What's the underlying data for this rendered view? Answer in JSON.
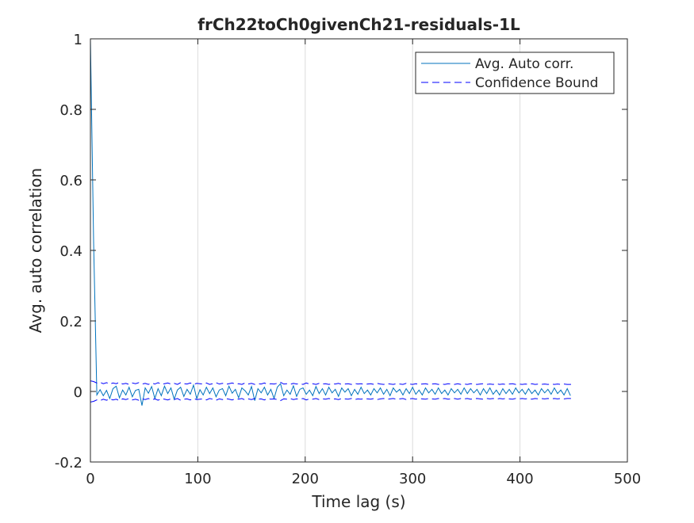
{
  "chart_data": {
    "type": "line",
    "title": "frCh22toCh0givenCh21-residuals-1L",
    "xlabel": "Time lag (s)",
    "ylabel": "Avg. auto correlation",
    "xlim": [
      0,
      500
    ],
    "ylim": [
      -0.2,
      1
    ],
    "xticks": [
      0,
      100,
      200,
      300,
      400,
      500
    ],
    "yticks": [
      -0.2,
      0,
      0.2,
      0.4,
      0.6,
      0.8,
      1
    ],
    "xtick_labels": [
      "0",
      "100",
      "200",
      "300",
      "400",
      "500"
    ],
    "ytick_labels": [
      "-0.2",
      "0",
      "0.2",
      "0.4",
      "0.6",
      "0.8",
      "1"
    ],
    "grid": "x-major",
    "legend_position": "top-right",
    "series": [
      {
        "name": "Avg. Auto corr.",
        "style": "solid",
        "color": "#0072BD",
        "x_start": 0,
        "x_step": 3,
        "values": [
          1.0,
          0.42,
          -0.01,
          0.005,
          -0.012,
          0.003,
          -0.02,
          0.008,
          0.015,
          -0.018,
          0.004,
          -0.01,
          0.012,
          -0.015,
          0.003,
          0.006,
          -0.04,
          0.01,
          -0.005,
          0.014,
          -0.02,
          0.008,
          -0.012,
          0.015,
          -0.006,
          0.01,
          -0.022,
          0.004,
          0.012,
          -0.014,
          0.006,
          -0.008,
          0.018,
          -0.02,
          0.005,
          -0.01,
          0.012,
          -0.006,
          0.01,
          -0.015,
          0.004,
          0.008,
          -0.012,
          0.015,
          -0.005,
          0.006,
          -0.018,
          0.01,
          0.002,
          -0.01,
          0.014,
          -0.026,
          0.008,
          -0.004,
          0.012,
          -0.01,
          0.006,
          -0.02,
          0.012,
          0.022,
          -0.012,
          0.004,
          -0.008,
          0.016,
          -0.014,
          0.006,
          0.01,
          -0.008,
          0.004,
          -0.012,
          0.014,
          -0.006,
          0.008,
          -0.01,
          0.012,
          -0.004,
          0.006,
          -0.014,
          0.01,
          -0.002,
          0.008,
          -0.012,
          0.006,
          -0.008,
          0.012,
          -0.006,
          0.004,
          -0.01,
          0.008,
          -0.004,
          0.01,
          -0.008,
          0.006,
          -0.012,
          0.01,
          -0.002,
          0.006,
          -0.01,
          0.008,
          -0.006,
          0.012,
          -0.008,
          0.004,
          -0.01,
          0.01,
          -0.004,
          0.006,
          -0.008,
          0.01,
          -0.006,
          0.004,
          -0.01,
          0.008,
          -0.004,
          0.006,
          -0.008,
          0.01,
          -0.006,
          0.008,
          -0.004,
          0.006,
          -0.01,
          0.008,
          -0.006,
          0.01,
          -0.008,
          0.004,
          -0.01,
          0.008,
          -0.006,
          0.006,
          -0.008,
          0.01,
          -0.004,
          0.006,
          -0.008,
          0.008,
          -0.006,
          0.004,
          -0.01,
          0.008,
          -0.004,
          0.006,
          -0.008,
          0.01,
          -0.006,
          0.004,
          -0.01,
          0.008,
          -0.012
        ]
      },
      {
        "name": "Confidence Bound",
        "style": "dashed",
        "color": "#0000FF",
        "x_start": 0,
        "x_step": 3,
        "upper": [
          0.03,
          0.028,
          0.024,
          0.026,
          0.022,
          0.025,
          0.021,
          0.024,
          0.022,
          0.026,
          0.021,
          0.023,
          0.02,
          0.024,
          0.022,
          0.025,
          0.021,
          0.023,
          0.02,
          0.024,
          0.021,
          0.025,
          0.02,
          0.022,
          0.024,
          0.021,
          0.023,
          0.02,
          0.025,
          0.022,
          0.021,
          0.024,
          0.02,
          0.023,
          0.022,
          0.021,
          0.024,
          0.02,
          0.022,
          0.025,
          0.021,
          0.023,
          0.02,
          0.022,
          0.024,
          0.021,
          0.022,
          0.02,
          0.024,
          0.021,
          0.023,
          0.02,
          0.022,
          0.021,
          0.024,
          0.02,
          0.022,
          0.021,
          0.023,
          0.026,
          0.021,
          0.022,
          0.02,
          0.023,
          0.021,
          0.022,
          0.02,
          0.024,
          0.021,
          0.022,
          0.02,
          0.023,
          0.021,
          0.022,
          0.02,
          0.022,
          0.021,
          0.023,
          0.02,
          0.021,
          0.022,
          0.02,
          0.023,
          0.021,
          0.022,
          0.02,
          0.021,
          0.022,
          0.02,
          0.023,
          0.021,
          0.02,
          0.022,
          0.021,
          0.02,
          0.022,
          0.021,
          0.02,
          0.023,
          0.021,
          0.02,
          0.022,
          0.02,
          0.021,
          0.022,
          0.02,
          0.021,
          0.022,
          0.02,
          0.021,
          0.02,
          0.022,
          0.021,
          0.02,
          0.022,
          0.02,
          0.021,
          0.02,
          0.022,
          0.021,
          0.02,
          0.021,
          0.022,
          0.02,
          0.021,
          0.02,
          0.022,
          0.02,
          0.021,
          0.02,
          0.021,
          0.022,
          0.02,
          0.021,
          0.02,
          0.021,
          0.02,
          0.022,
          0.02,
          0.021,
          0.02,
          0.021,
          0.02,
          0.021,
          0.02,
          0.021,
          0.02,
          0.021,
          0.02,
          0.02,
          0.021
        ],
        "lower": [
          -0.03,
          -0.028,
          -0.024,
          -0.026,
          -0.022,
          -0.025,
          -0.021,
          -0.024,
          -0.022,
          -0.026,
          -0.021,
          -0.023,
          -0.02,
          -0.024,
          -0.022,
          -0.025,
          -0.021,
          -0.023,
          -0.02,
          -0.024,
          -0.021,
          -0.025,
          -0.02,
          -0.022,
          -0.024,
          -0.021,
          -0.023,
          -0.02,
          -0.025,
          -0.022,
          -0.021,
          -0.024,
          -0.02,
          -0.023,
          -0.022,
          -0.021,
          -0.024,
          -0.02,
          -0.022,
          -0.025,
          -0.021,
          -0.023,
          -0.02,
          -0.022,
          -0.024,
          -0.021,
          -0.022,
          -0.02,
          -0.024,
          -0.021,
          -0.023,
          -0.02,
          -0.022,
          -0.021,
          -0.024,
          -0.02,
          -0.022,
          -0.021,
          -0.023,
          -0.026,
          -0.021,
          -0.022,
          -0.02,
          -0.023,
          -0.021,
          -0.022,
          -0.02,
          -0.024,
          -0.021,
          -0.022,
          -0.02,
          -0.023,
          -0.021,
          -0.022,
          -0.02,
          -0.022,
          -0.021,
          -0.023,
          -0.02,
          -0.021,
          -0.022,
          -0.02,
          -0.023,
          -0.021,
          -0.022,
          -0.02,
          -0.021,
          -0.022,
          -0.02,
          -0.023,
          -0.021,
          -0.02,
          -0.022,
          -0.021,
          -0.02,
          -0.022,
          -0.021,
          -0.02,
          -0.023,
          -0.021,
          -0.02,
          -0.022,
          -0.02,
          -0.021,
          -0.022,
          -0.02,
          -0.021,
          -0.022,
          -0.02,
          -0.021,
          -0.02,
          -0.022,
          -0.021,
          -0.02,
          -0.022,
          -0.02,
          -0.021,
          -0.02,
          -0.022,
          -0.021,
          -0.02,
          -0.021,
          -0.022,
          -0.02,
          -0.021,
          -0.02,
          -0.022,
          -0.02,
          -0.021,
          -0.02,
          -0.021,
          -0.022,
          -0.02,
          -0.021,
          -0.02,
          -0.021,
          -0.02,
          -0.022,
          -0.02,
          -0.021,
          -0.02,
          -0.021,
          -0.02,
          -0.021,
          -0.02,
          -0.021,
          -0.02,
          -0.021,
          -0.02,
          -0.02,
          -0.021
        ]
      }
    ]
  }
}
